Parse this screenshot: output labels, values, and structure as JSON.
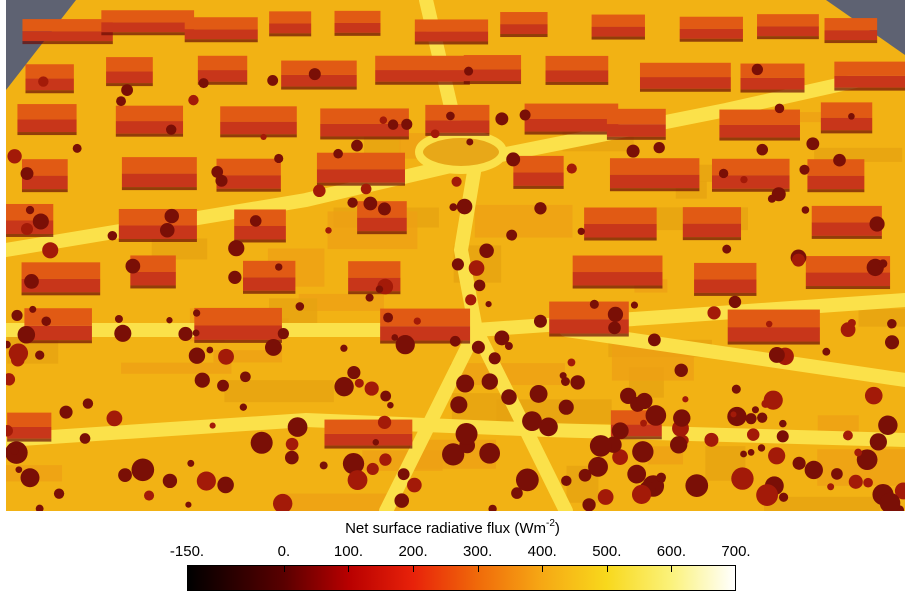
{
  "visualization": {
    "scene": "3D urban surface rendering colored by net surface radiative flux",
    "colors": {
      "background": "#5e6272",
      "ground_bright": "#f7c21a",
      "ground_mid": "#e6a210",
      "roof": "#e15a14",
      "wall_shadow": "#c8361a",
      "tree_shadow": "#7a0f06",
      "road": "#fbe14a"
    }
  },
  "colorbar": {
    "title_main": "Net surface radiative flux (Wm",
    "title_sup": "-2",
    "title_close": ")",
    "range": [
      -150,
      700
    ],
    "ticks": [
      {
        "label": "-150.",
        "value": -150
      },
      {
        "label": "0.",
        "value": 0
      },
      {
        "label": "100.",
        "value": 100
      },
      {
        "label": "200.",
        "value": 200
      },
      {
        "label": "300.",
        "value": 300
      },
      {
        "label": "400.",
        "value": 400
      },
      {
        "label": "500.",
        "value": 500
      },
      {
        "label": "600.",
        "value": 600
      },
      {
        "label": "700.",
        "value": 700
      }
    ],
    "gradient_stops": [
      {
        "value": -150,
        "color": "#000000"
      },
      {
        "value": 0,
        "color": "#5a0000"
      },
      {
        "value": 100,
        "color": "#b80000"
      },
      {
        "value": 200,
        "color": "#e8220a"
      },
      {
        "value": 300,
        "color": "#f06a0a"
      },
      {
        "value": 400,
        "color": "#f6a814"
      },
      {
        "value": 500,
        "color": "#f8d81c"
      },
      {
        "value": 600,
        "color": "#fbf27a"
      },
      {
        "value": 700,
        "color": "#ffffff"
      }
    ]
  }
}
